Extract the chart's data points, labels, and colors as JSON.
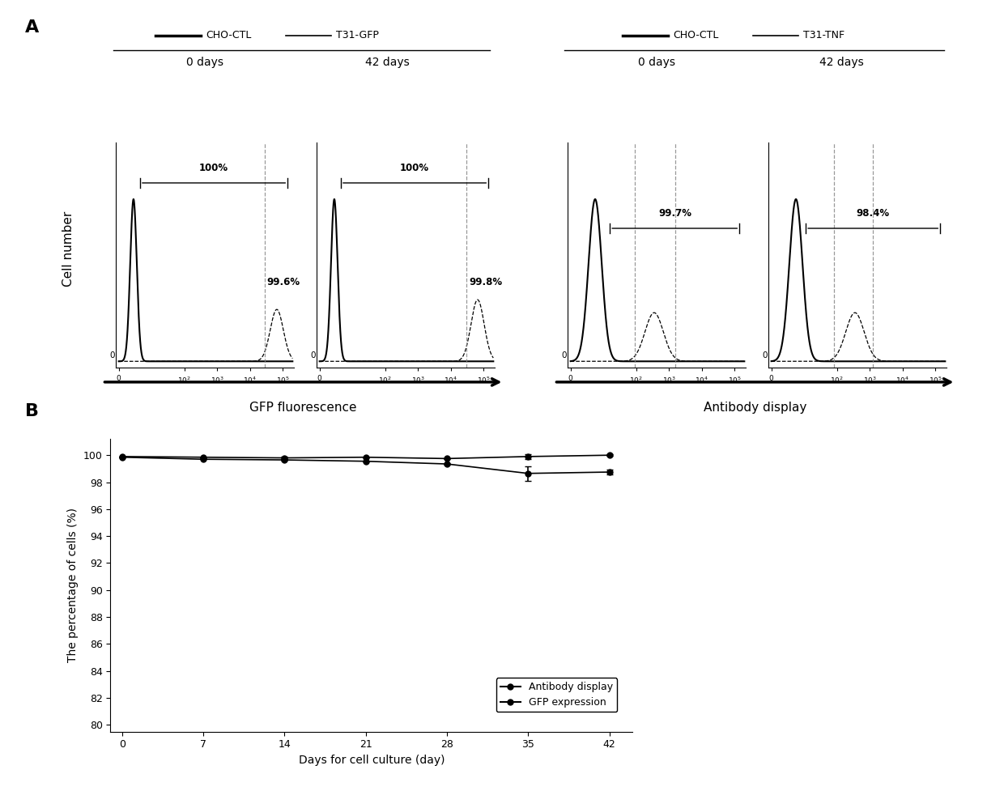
{
  "panel_A_label": "A",
  "panel_B_label": "B",
  "left_legend_line1": "CHO-CTL",
  "left_legend_line2": "T31-GFP",
  "right_legend_line1": "CHO-CTL",
  "right_legend_line2": "T31-TNF",
  "left_group_label": "0 days",
  "left_group_label2": "42 days",
  "right_group_label": "0 days",
  "right_group_label2": "42 days",
  "left_xlabel": "GFP fluorescence",
  "right_xlabel": "Antibody display",
  "ylabel_A": "Cell number",
  "gfp0_bracket": "100%",
  "gfp0_dashed_label": "99.6%",
  "gfp42_bracket": "100%",
  "gfp42_dashed_label": "99.8%",
  "tnf0_bracket": "99.7%",
  "tnf42_bracket": "98.4%",
  "B_days": [
    0,
    7,
    14,
    21,
    28,
    35,
    42
  ],
  "B_antibody_display": [
    99.85,
    99.7,
    99.65,
    99.55,
    99.35,
    98.65,
    98.75
  ],
  "B_antibody_err": [
    0.0,
    0.0,
    0.05,
    0.0,
    0.05,
    0.55,
    0.2
  ],
  "B_gfp_expression": [
    99.9,
    99.85,
    99.8,
    99.85,
    99.75,
    99.9,
    100.0
  ],
  "B_gfp_err": [
    0.0,
    0.0,
    0.1,
    0.0,
    0.05,
    0.2,
    0.05
  ],
  "B_ylabel": "The percentage of cells (%)",
  "B_xlabel": "Days for cell culture (day)",
  "B_yticks": [
    80,
    82,
    84,
    86,
    88,
    90,
    92,
    94,
    96,
    98,
    100
  ],
  "B_xticks": [
    0,
    7,
    14,
    21,
    28,
    35,
    42
  ],
  "B_ylim": [
    79.5,
    101.2
  ],
  "B_xlim": [
    -1,
    44
  ]
}
